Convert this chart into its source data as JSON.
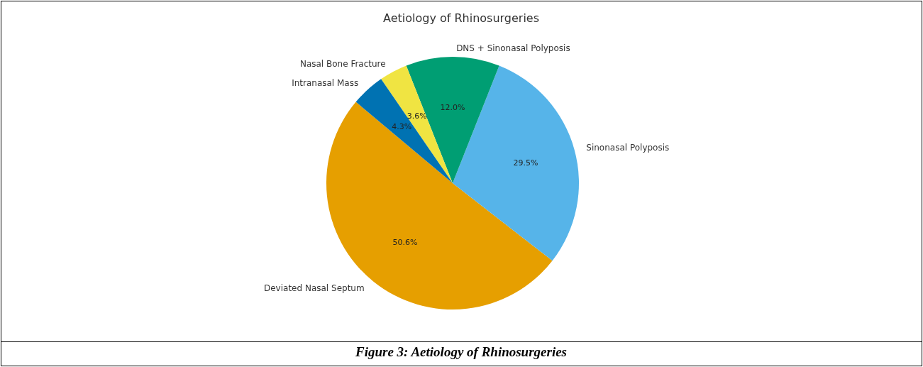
{
  "chart_data": {
    "type": "pie",
    "title": "Aetiology of Rhinosurgeries",
    "categories": [
      "Deviated Nasal Septum",
      "Sinonasal Polyposis",
      "DNS + Sinonasal Polyposis",
      "Nasal Bone Fracture",
      "Intranasal Mass"
    ],
    "values": [
      50.6,
      29.5,
      12.0,
      3.6,
      4.3
    ],
    "colors": [
      "#e69f00",
      "#56b4e9",
      "#009e73",
      "#f0e442",
      "#0072b2"
    ],
    "value_labels": [
      "50.6%",
      "29.5%",
      "12.0%",
      "3.6%",
      "4.3%"
    ],
    "annotations": [
      "Figure 3: Aetiology of Rhinosurgeries"
    ]
  }
}
